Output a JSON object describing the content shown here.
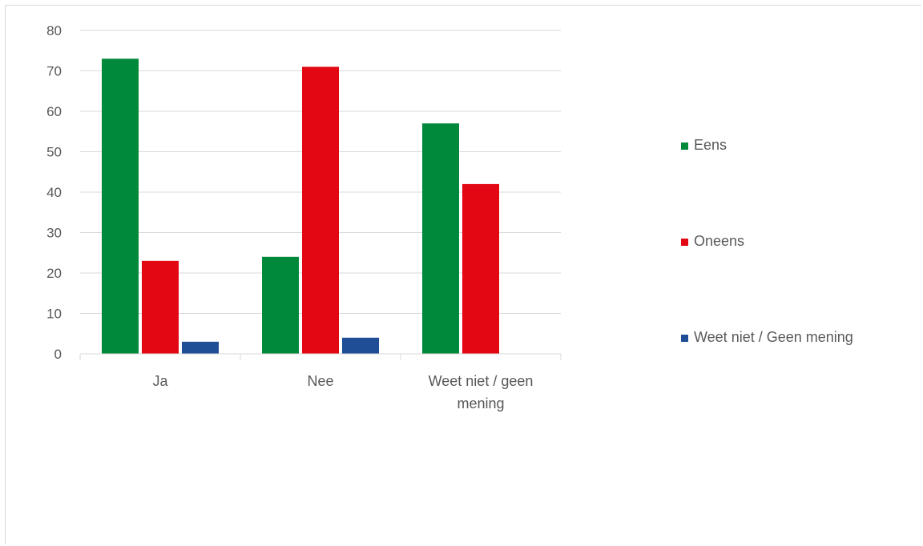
{
  "chart_data": {
    "type": "bar",
    "categories": [
      "Ja",
      "Nee",
      "Weet niet / geen mening"
    ],
    "series": [
      {
        "name": "Eens",
        "color": "#00893a",
        "values": [
          73,
          24,
          57
        ]
      },
      {
        "name": "Oneens",
        "color": "#e30613",
        "values": [
          23,
          71,
          42
        ]
      },
      {
        "name": "Weet niet / Geen mening",
        "color": "#1f4e96",
        "values": [
          3,
          4,
          0
        ]
      }
    ],
    "ylim": [
      0,
      80
    ],
    "yticks": [
      0,
      10,
      20,
      30,
      40,
      50,
      60,
      70,
      80
    ],
    "grid": true,
    "legend_position": "right"
  }
}
